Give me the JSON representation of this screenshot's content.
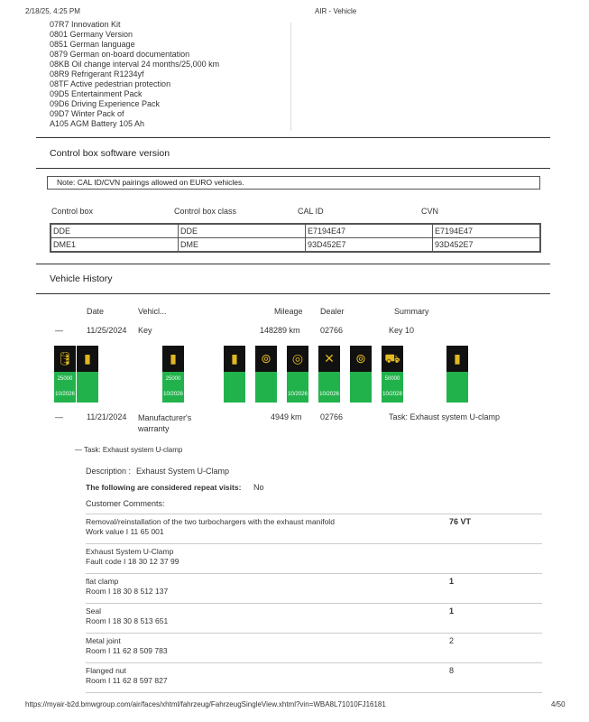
{
  "header": {
    "datetime": "2/18/25, 4:25 PM",
    "title": "AIR - Vehicle"
  },
  "options": [
    "07R7 Innovation Kit",
    "0801 Germany Version",
    "0851 German language",
    "0879 German on-board documentation",
    "08KB Oil change interval 24 months/25,000 km",
    "08R9 Refrigerant R1234yf",
    "08TF Active pedestrian protection",
    "09D5 Entertainment Pack",
    "09D6 Driving Experience Pack",
    "09D7 Winter Pack of",
    "A105 AGM Battery 105 Ah"
  ],
  "control_box": {
    "title": "Control box software version",
    "note_label": "Note:",
    "note": "CAL ID/CVN pairings allowed on EURO vehicles.",
    "columns": [
      "Control box",
      "Control box class",
      "CAL ID",
      "CVN"
    ],
    "rows": [
      [
        "DDE",
        "DDE",
        "E7194E47",
        "E7194E47"
      ],
      [
        "DME1",
        "DME",
        "93D452E7",
        "93D452E7"
      ]
    ]
  },
  "history": {
    "title": "Vehicle History",
    "columns": {
      "date": "Date",
      "vehicle": "Vehicl...",
      "mileage": "Mileage",
      "dealer": "Dealer",
      "summary": "Summary"
    },
    "rows": [
      {
        "toggle": "—",
        "date": "11/25/2024",
        "vehicle": "Key",
        "mileage": "148289 km",
        "dealer": "02766",
        "summary": "Key 10"
      },
      {
        "toggle": "—",
        "date": "11/21/2024",
        "vehicle": "Manufacturer's warranty",
        "mileage": "4949 km",
        "dealer": "02766",
        "summary": "Task: Exhaust system U-clamp"
      }
    ],
    "tiles": [
      {
        "icon": "oil-can-icon",
        "glyph": "🛢",
        "top": "25000",
        "bottom": "10/2026"
      },
      {
        "icon": "battery-icon",
        "glyph": "▮",
        "top": "",
        "bottom": ""
      },
      {
        "icon": "battery-icon",
        "glyph": "▮",
        "top": "25000",
        "bottom": "10/2026"
      },
      {
        "icon": "battery-icon",
        "glyph": "▮",
        "top": "",
        "bottom": ""
      },
      {
        "icon": "front-brake-icon",
        "glyph": "⊚",
        "top": "",
        "bottom": ""
      },
      {
        "icon": "brake-fluid-icon",
        "glyph": "◎",
        "top": "",
        "bottom": "10/2026"
      },
      {
        "icon": "service-tools-icon",
        "glyph": "✕",
        "top": "",
        "bottom": "10/2026"
      },
      {
        "icon": "rear-brake-icon",
        "glyph": "⊚",
        "top": "",
        "bottom": ""
      },
      {
        "icon": "vehicle-inspection-icon",
        "glyph": "⛟",
        "top": "50000",
        "bottom": "10/2028"
      },
      {
        "icon": "battery-icon",
        "glyph": "▮",
        "top": "",
        "bottom": ""
      }
    ],
    "colors": {
      "tile_top": "#111111",
      "tile_bottom": "#22b24c",
      "icon": "#e0b820"
    }
  },
  "task": {
    "toggle": "—",
    "title": "Task: Exhaust system U-clamp",
    "description_label": "Description :",
    "description": "Exhaust System U-Clamp",
    "repeat_label": "The following are considered repeat visits:",
    "repeat_value": "No",
    "comments_label": "Customer Comments:",
    "items": [
      {
        "name": "Removal/reinstallation of the two turbochargers with the exhaust manifold",
        "code": "Work value I 11 65 001",
        "qty": "76 VT"
      },
      {
        "name": "Exhaust System U-Clamp",
        "code": "Fault code I 18 30 12 37 99",
        "qty": ""
      },
      {
        "name": "flat clamp",
        "code": "Room I 18 30 8 512 137",
        "qty": "1"
      },
      {
        "name": "Seal",
        "code": "Room I 18 30 8 513 651",
        "qty": "1"
      },
      {
        "name": "Metal joint",
        "code": "Room I 11 62 8 509 783",
        "qty": "2"
      },
      {
        "name": "Flanged nut",
        "code": "Room I 11 62 8 597 827",
        "qty": "8"
      }
    ]
  },
  "footer": {
    "url": "https://myair-b2d.bmwgroup.com/air/faces/xhtml/fahrzeug/FahrzeugSingleView.xhtml?vin=WBA8L71010FJ16181",
    "page": "4/50"
  }
}
